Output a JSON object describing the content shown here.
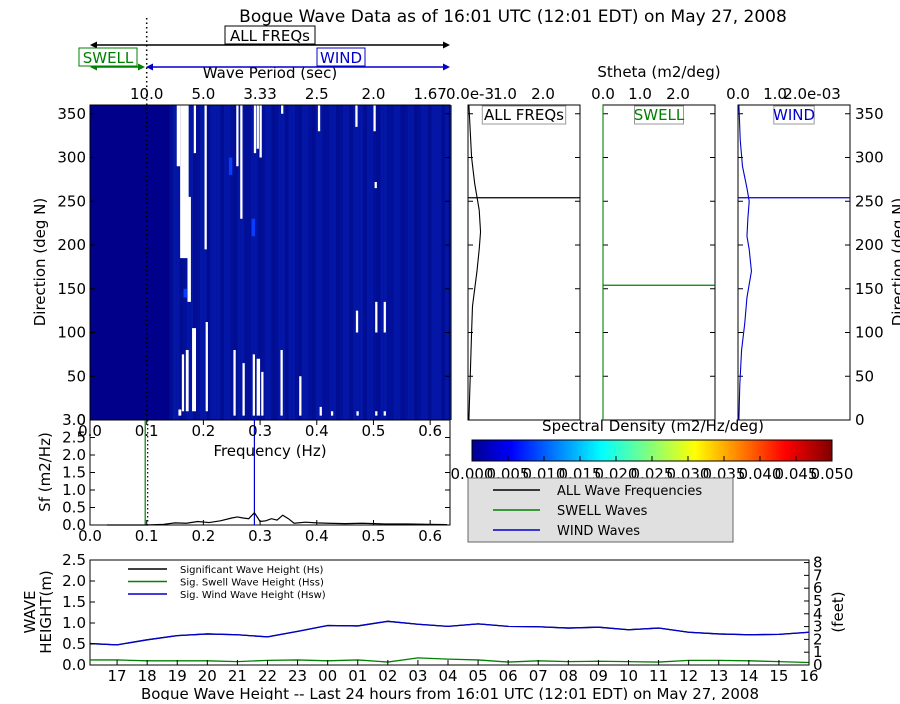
{
  "title": "Bogue Wave Data as of 16:01 UTC (12:01 EDT) on May 27, 2008",
  "colors": {
    "all": "#000000",
    "swell": "#008000",
    "wind": "#0000cc",
    "heatmap_bg": "#00008b",
    "legend_bg": "#e0e0e0"
  },
  "chart_data": [
    {
      "id": "directional_spectrum",
      "type": "heatmap",
      "top_label": "Wave Period (sec)",
      "top_ticks": [
        "10.0",
        "5.0",
        "3.33",
        "2.5",
        "2.0",
        "1.67"
      ],
      "top_tick_freqs": [
        0.1,
        0.2,
        0.3,
        0.4,
        0.5,
        0.6
      ],
      "xlabel": "Frequency (Hz)",
      "ylabel": "Direction (deg N)",
      "x_ticks": [
        0.0,
        0.1,
        0.2,
        0.3,
        0.4,
        0.5,
        0.6
      ],
      "y_ticks": [
        0,
        50,
        100,
        150,
        200,
        250,
        300,
        350
      ],
      "xlim": [
        0.0,
        0.635
      ],
      "ylim": [
        0,
        360
      ],
      "white_gaps": [
        {
          "f": 0.153,
          "w": 0.006,
          "d0": 290,
          "d1": 360
        },
        {
          "f": 0.159,
          "w": 0.015,
          "d0": 185,
          "d1": 360
        },
        {
          "f": 0.156,
          "w": 0.005,
          "d0": 5,
          "d1": 12
        },
        {
          "f": 0.162,
          "w": 0.004,
          "d0": 10,
          "d1": 75
        },
        {
          "f": 0.169,
          "w": 0.005,
          "d0": 10,
          "d1": 80
        },
        {
          "f": 0.172,
          "w": 0.006,
          "d0": 135,
          "d1": 255
        },
        {
          "f": 0.18,
          "w": 0.007,
          "d0": 10,
          "d1": 105
        },
        {
          "f": 0.183,
          "w": 0.004,
          "d0": 305,
          "d1": 360
        },
        {
          "f": 0.202,
          "w": 0.004,
          "d0": 195,
          "d1": 360
        },
        {
          "f": 0.204,
          "w": 0.004,
          "d0": 10,
          "d1": 112
        },
        {
          "f": 0.253,
          "w": 0.004,
          "d0": 5,
          "d1": 80
        },
        {
          "f": 0.258,
          "w": 0.004,
          "d0": 290,
          "d1": 360
        },
        {
          "f": 0.265,
          "w": 0.004,
          "d0": 230,
          "d1": 360
        },
        {
          "f": 0.269,
          "w": 0.004,
          "d0": 5,
          "d1": 65
        },
        {
          "f": 0.287,
          "w": 0.004,
          "d0": 5,
          "d1": 75
        },
        {
          "f": 0.289,
          "w": 0.004,
          "d0": 305,
          "d1": 360
        },
        {
          "f": 0.294,
          "w": 0.006,
          "d0": 5,
          "d1": 70
        },
        {
          "f": 0.294,
          "w": 0.004,
          "d0": 310,
          "d1": 360
        },
        {
          "f": 0.299,
          "w": 0.004,
          "d0": 300,
          "d1": 360
        },
        {
          "f": 0.302,
          "w": 0.004,
          "d0": 5,
          "d1": 55
        },
        {
          "f": 0.336,
          "w": 0.004,
          "d0": 5,
          "d1": 80
        },
        {
          "f": 0.337,
          "w": 0.004,
          "d0": 350,
          "d1": 360
        },
        {
          "f": 0.369,
          "w": 0.004,
          "d0": 5,
          "d1": 50
        },
        {
          "f": 0.402,
          "w": 0.004,
          "d0": 330,
          "d1": 360
        },
        {
          "f": 0.405,
          "w": 0.004,
          "d0": 5,
          "d1": 15
        },
        {
          "f": 0.425,
          "w": 0.004,
          "d0": 5,
          "d1": 10
        },
        {
          "f": 0.468,
          "w": 0.004,
          "d0": 335,
          "d1": 360
        },
        {
          "f": 0.469,
          "w": 0.004,
          "d0": 100,
          "d1": 125
        },
        {
          "f": 0.47,
          "w": 0.004,
          "d0": 5,
          "d1": 10
        },
        {
          "f": 0.5,
          "w": 0.004,
          "d0": 330,
          "d1": 360
        },
        {
          "f": 0.502,
          "w": 0.004,
          "d0": 265,
          "d1": 272
        },
        {
          "f": 0.503,
          "w": 0.004,
          "d0": 100,
          "d1": 135
        },
        {
          "f": 0.503,
          "w": 0.004,
          "d0": 5,
          "d1": 10
        },
        {
          "f": 0.518,
          "w": 0.004,
          "d0": 100,
          "d1": 135
        },
        {
          "f": 0.518,
          "w": 0.004,
          "d0": 5,
          "d1": 10
        }
      ],
      "bright_cells": [
        {
          "f": 0.285,
          "w": 0.006,
          "d0": 210,
          "d1": 230
        },
        {
          "f": 0.165,
          "w": 0.006,
          "d0": 140,
          "d1": 150
        },
        {
          "f": 0.245,
          "w": 0.006,
          "d0": 280,
          "d1": 300
        }
      ],
      "markers": {
        "swell_freq": 0.1,
        "all_label": "ALL FREQs",
        "swell_label": "SWELL",
        "wind_label": "WIND"
      }
    },
    {
      "id": "sf_spectrum",
      "type": "line",
      "ylabel": "Sf (m2/Hz)",
      "y_ticks": [
        "0.0",
        "0.5",
        "1.0",
        "1.5",
        "2.0",
        "2.5",
        "3.0"
      ],
      "x_ticks": [
        "0.0",
        "0.1",
        "0.2",
        "0.3",
        "0.4",
        "0.5",
        "0.6"
      ],
      "ylim": [
        0,
        3.0
      ],
      "xlim": [
        0.0,
        0.635
      ],
      "swell_line_freq": 0.1,
      "wind_line_freq": 0.29,
      "x": [
        0.03,
        0.1,
        0.13,
        0.15,
        0.17,
        0.19,
        0.21,
        0.23,
        0.25,
        0.26,
        0.27,
        0.28,
        0.29,
        0.3,
        0.31,
        0.32,
        0.33,
        0.34,
        0.35,
        0.36,
        0.38,
        0.4,
        0.42,
        0.45,
        0.48,
        0.52,
        0.56,
        0.6,
        0.63
      ],
      "values": [
        0.0,
        0.0,
        0.02,
        0.06,
        0.05,
        0.1,
        0.07,
        0.12,
        0.2,
        0.23,
        0.2,
        0.18,
        0.35,
        0.1,
        0.12,
        0.18,
        0.14,
        0.28,
        0.18,
        0.05,
        0.08,
        0.06,
        0.05,
        0.04,
        0.05,
        0.03,
        0.03,
        0.02,
        0.01
      ]
    },
    {
      "id": "stheta_all",
      "type": "line",
      "panel_title": "Stheta (m2/deg)",
      "label": "ALL FREQs",
      "x_ticks": [
        "0.0e-3",
        "1.0",
        "2.0"
      ],
      "xlim": [
        0.0,
        2.5
      ],
      "ylim": [
        0,
        360
      ],
      "mean_dir": 254,
      "x": [
        0.02,
        0.05,
        0.08,
        0.1,
        0.15,
        0.2,
        0.25,
        0.28,
        0.25,
        0.15,
        0.08,
        0.05,
        0.02
      ],
      "y": [
        0,
        50,
        100,
        130,
        150,
        170,
        195,
        215,
        240,
        270,
        300,
        330,
        360
      ]
    },
    {
      "id": "stheta_swell",
      "type": "line",
      "label": "SWELL",
      "x_ticks": [
        "0.0",
        "1.0",
        "2.0"
      ],
      "xlim": [
        0.0,
        2.5
      ],
      "ylim": [
        0,
        360
      ],
      "mean_dir": 154,
      "x": [
        0.0,
        0.0
      ],
      "y": [
        0,
        360
      ]
    },
    {
      "id": "stheta_wind",
      "type": "line",
      "label": "WIND",
      "x_ticks": [
        "0.0",
        "1.0",
        "2.0e-03"
      ],
      "xlim": [
        0.0,
        2.5
      ],
      "ylim": [
        0,
        360
      ],
      "mean_dir": 254,
      "x": [
        0.02,
        0.04,
        0.08,
        0.15,
        0.2,
        0.25,
        0.3,
        0.25,
        0.2,
        0.22,
        0.25,
        0.2,
        0.1,
        0.05,
        0.02
      ],
      "y": [
        0,
        40,
        80,
        110,
        140,
        155,
        170,
        195,
        210,
        230,
        250,
        265,
        290,
        320,
        360
      ]
    },
    {
      "id": "colorbar",
      "type": "colorbar",
      "title": "Spectral Density (m2/Hz/deg)",
      "ticks": [
        "0.000",
        "0.005",
        "0.010",
        "0.015",
        "0.020",
        "0.025",
        "0.030",
        "0.035",
        "0.040",
        "0.045",
        "0.050"
      ]
    },
    {
      "id": "wave_height",
      "type": "line",
      "title": "Bogue Wave Height -- Last 24 hours from 16:01 UTC (12:01 EDT) on May 27, 2008",
      "ylabel": "WAVE HEIGHT(m)",
      "ylabel_right": "(feet)",
      "y_ticks": [
        "0.0",
        "0.5",
        "1.0",
        "1.5",
        "2.0",
        "2.5"
      ],
      "y_ticks_right": [
        "0",
        "1",
        "2",
        "3",
        "4",
        "5",
        "6",
        "7",
        "8"
      ],
      "ylim": [
        0,
        2.5
      ],
      "categories": [
        "17",
        "18",
        "19",
        "20",
        "21",
        "22",
        "23",
        "00",
        "01",
        "02",
        "03",
        "04",
        "05",
        "06",
        "07",
        "08",
        "09",
        "10",
        "11",
        "12",
        "13",
        "14",
        "15",
        "16"
      ],
      "xlim_hours": [
        -0.9,
        23.0
      ],
      "series": [
        {
          "name": "Significant Wave Height (Hs)",
          "color": "#000000",
          "x": [
            -0.9,
            0,
            1,
            2,
            3,
            4,
            5,
            6,
            7,
            8,
            9,
            10,
            11,
            12,
            13,
            14,
            15,
            16,
            17,
            18,
            19,
            20,
            21,
            22,
            23
          ],
          "values": [
            0.51,
            0.48,
            0.6,
            0.7,
            0.74,
            0.72,
            0.67,
            0.8,
            0.94,
            0.93,
            1.04,
            0.97,
            0.92,
            0.98,
            0.92,
            0.91,
            0.88,
            0.9,
            0.84,
            0.88,
            0.78,
            0.74,
            0.72,
            0.73,
            0.78
          ]
        },
        {
          "name": "Sig. Swell Wave Height (Hss)",
          "color": "#008000",
          "x": [
            -0.9,
            0,
            1,
            2,
            3,
            4,
            5,
            6,
            7,
            8,
            9,
            10,
            11,
            12,
            13,
            14,
            15,
            16,
            17,
            18,
            19,
            20,
            21,
            22,
            23
          ],
          "values": [
            0.12,
            0.12,
            0.1,
            0.1,
            0.1,
            0.08,
            0.11,
            0.12,
            0.1,
            0.12,
            0.07,
            0.17,
            0.14,
            0.12,
            0.07,
            0.1,
            0.08,
            0.09,
            0.08,
            0.07,
            0.11,
            0.11,
            0.1,
            0.08,
            0.06
          ]
        },
        {
          "name": "Sig. Wind Wave Height (Hsw)",
          "color": "#0000cc",
          "x": [
            -0.9,
            0,
            1,
            2,
            3,
            4,
            5,
            6,
            7,
            8,
            9,
            10,
            11,
            12,
            13,
            14,
            15,
            16,
            17,
            18,
            19,
            20,
            21,
            22,
            23
          ],
          "values": [
            0.51,
            0.48,
            0.6,
            0.7,
            0.74,
            0.72,
            0.67,
            0.8,
            0.94,
            0.93,
            1.04,
            0.97,
            0.92,
            0.98,
            0.92,
            0.91,
            0.88,
            0.9,
            0.84,
            0.88,
            0.78,
            0.74,
            0.72,
            0.73,
            0.78
          ]
        }
      ]
    }
  ],
  "legend": {
    "items": [
      {
        "label": "ALL Wave Frequencies",
        "color": "#000000"
      },
      {
        "label": "SWELL Waves",
        "color": "#008000"
      },
      {
        "label": "WIND Waves",
        "color": "#0000cc"
      }
    ]
  }
}
